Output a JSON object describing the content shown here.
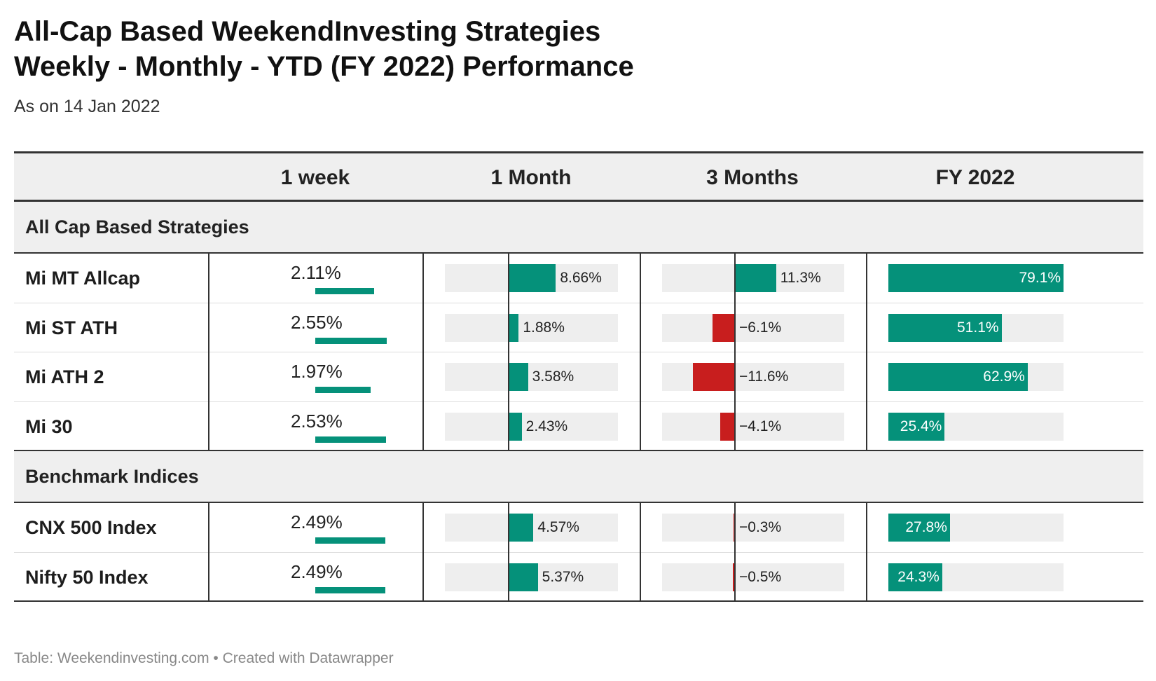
{
  "title": "All-Cap Based WeekendInvesting Strategies\nWeekly - Monthly - YTD (FY 2022)  Performance",
  "subtitle": "As on 14 Jan 2022",
  "footer": "Table: Weekendinvesting.com • Created with Datawrapper",
  "colors": {
    "positive": "#05917a",
    "negative": "#c81e1e",
    "track": "#eeeeee",
    "header_bg": "#efefef"
  },
  "chart_data": {
    "type": "table",
    "columns": [
      "",
      "1 week",
      "1 Month",
      "3 Months",
      "FY 2022"
    ],
    "groups": [
      {
        "label": "All Cap Based Strategies",
        "rows": [
          {
            "name": "Mi MT Allcap",
            "week": 2.11,
            "week_label": "2.11%",
            "month": 8.66,
            "month_label": "8.66%",
            "three_month": 11.3,
            "three_month_label": "11.3%",
            "fy": 79.1,
            "fy_label": "79.1%"
          },
          {
            "name": "Mi ST ATH",
            "week": 2.55,
            "week_label": "2.55%",
            "month": 1.88,
            "month_label": "1.88%",
            "three_month": -6.1,
            "three_month_label": "−6.1%",
            "fy": 51.1,
            "fy_label": "51.1%"
          },
          {
            "name": "Mi ATH 2",
            "week": 1.97,
            "week_label": "1.97%",
            "month": 3.58,
            "month_label": "3.58%",
            "three_month": -11.6,
            "three_month_label": "−11.6%",
            "fy": 62.9,
            "fy_label": "62.9%"
          },
          {
            "name": "Mi 30",
            "week": 2.53,
            "week_label": "2.53%",
            "month": 2.43,
            "month_label": "2.43%",
            "three_month": -4.1,
            "three_month_label": "−4.1%",
            "fy": 25.4,
            "fy_label": "25.4%"
          }
        ]
      },
      {
        "label": "Benchmark Indices",
        "rows": [
          {
            "name": "CNX 500 Index",
            "week": 2.49,
            "week_label": "2.49%",
            "month": 4.57,
            "month_label": "4.57%",
            "three_month": -0.3,
            "three_month_label": "−0.3%",
            "fy": 27.8,
            "fy_label": "27.8%"
          },
          {
            "name": "Nifty 50 Index",
            "week": 2.49,
            "week_label": "2.49%",
            "month": 5.37,
            "month_label": "5.37%",
            "three_month": -0.5,
            "three_month_label": "−0.5%",
            "fy": 24.3,
            "fy_label": "24.3%"
          }
        ]
      }
    ],
    "scales": {
      "week": [
        0,
        3
      ],
      "month": [
        -11.6,
        20
      ],
      "three_month": [
        -20,
        30
      ],
      "fy": [
        0,
        79.1
      ]
    }
  }
}
